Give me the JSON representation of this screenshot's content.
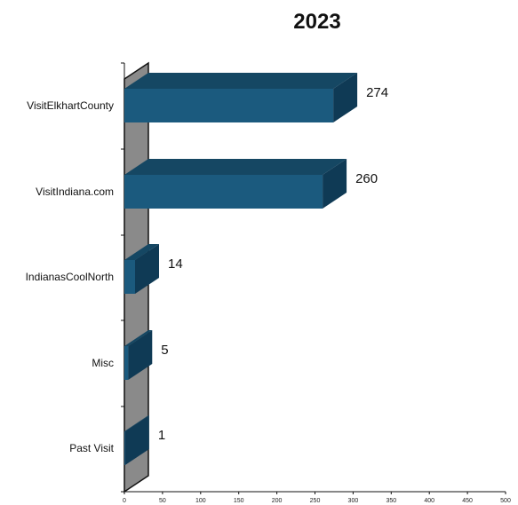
{
  "chart_data": {
    "type": "bar",
    "orientation": "horizontal",
    "title": "2023",
    "categories": [
      "VisitElkhartCounty",
      "VisitIndiana.com",
      "IndianasCoolNorth",
      "Misc",
      "Past Visit"
    ],
    "values": [
      274,
      260,
      14,
      5,
      1
    ],
    "data_labels": [
      "274",
      "260",
      "14",
      "5",
      "1"
    ],
    "xlim": [
      0,
      500
    ],
    "xticks": [
      0,
      50,
      100,
      150,
      200,
      250,
      300,
      350,
      400,
      450,
      500
    ],
    "xtick_labels": [
      "0",
      "50",
      "100",
      "150",
      "200",
      "250",
      "300",
      "350",
      "400",
      "450",
      "500"
    ],
    "grid": false,
    "legend": "none",
    "style": "3d",
    "colors": {
      "bar_front": "#1b5a7e",
      "bar_top": "#154763",
      "bar_side": "#0f3a55",
      "wall": "#8a8a8a"
    }
  }
}
